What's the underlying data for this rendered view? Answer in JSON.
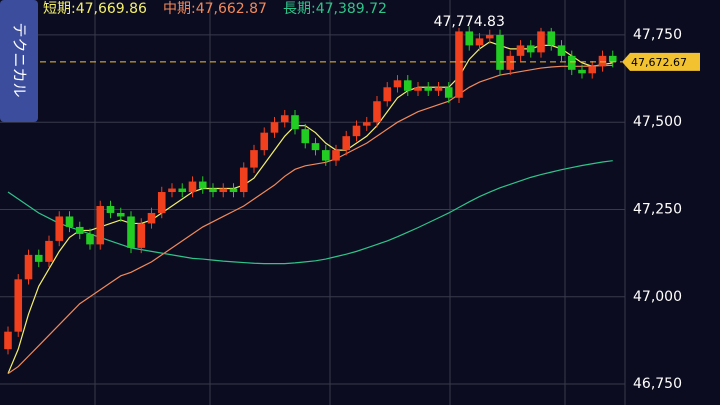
{
  "sidebar": {
    "label": "テクニカル"
  },
  "chart_data": {
    "type": "candlestick",
    "ylim": [
      46690,
      47850
    ],
    "yticks": [
      {
        "value": 46750,
        "label": "46,750"
      },
      {
        "value": 47000,
        "label": "47,000"
      },
      {
        "value": 47250,
        "label": "47,250"
      },
      {
        "value": 47500,
        "label": "47,500"
      },
      {
        "value": 47750,
        "label": "47,750"
      }
    ],
    "grid": true,
    "up_color": "#f0401e",
    "down_color": "#22cc22",
    "open": [
      46850,
      46900,
      47050,
      47120,
      47100,
      47160,
      47230,
      47200,
      47180,
      47150,
      47260,
      47240,
      47230,
      47140,
      47210,
      47240,
      47300,
      47310,
      47300,
      47330,
      47310,
      47300,
      47310,
      47300,
      47370,
      47420,
      47470,
      47500,
      47520,
      47480,
      47440,
      47420,
      47390,
      47420,
      47460,
      47490,
      47500,
      47560,
      47600,
      47620,
      47590,
      47600,
      47590,
      47600,
      47570,
      47760,
      47720,
      47740,
      47750,
      47650,
      47690,
      47720,
      47700,
      47760,
      47720,
      47690,
      47650,
      47640,
      47660,
      47690
    ],
    "high": [
      46915,
      47065,
      47135,
      47135,
      47175,
      47245,
      47245,
      47215,
      47195,
      47275,
      47275,
      47255,
      47245,
      47225,
      47255,
      47315,
      47325,
      47325,
      47345,
      47345,
      47325,
      47325,
      47325,
      47385,
      47435,
      47485,
      47515,
      47535,
      47535,
      47495,
      47455,
      47435,
      47435,
      47475,
      47505,
      47515,
      47575,
      47615,
      47635,
      47635,
      47615,
      47615,
      47615,
      47615,
      47770,
      47774.83,
      47755,
      47765,
      47765,
      47705,
      47735,
      47735,
      47770,
      47770,
      47735,
      47705,
      47665,
      47675,
      47705,
      47705
    ],
    "low": [
      46835,
      46885,
      47035,
      47085,
      47085,
      47145,
      47185,
      47165,
      47135,
      47135,
      47225,
      47215,
      47125,
      47125,
      47195,
      47225,
      47285,
      47285,
      47285,
      47295,
      47285,
      47285,
      47285,
      47285,
      47355,
      47405,
      47455,
      47485,
      47465,
      47425,
      47405,
      47375,
      47375,
      47405,
      47445,
      47475,
      47485,
      47545,
      47585,
      47575,
      47575,
      47575,
      47575,
      47555,
      47555,
      47705,
      47705,
      47725,
      47635,
      47635,
      47675,
      47685,
      47685,
      47705,
      47675,
      47635,
      47625,
      47625,
      47645,
      47657
    ],
    "close": [
      46900,
      47050,
      47120,
      47100,
      47160,
      47230,
      47200,
      47180,
      47150,
      47260,
      47240,
      47230,
      47140,
      47210,
      47240,
      47300,
      47310,
      47300,
      47330,
      47310,
      47300,
      47310,
      47300,
      47370,
      47420,
      47470,
      47500,
      47520,
      47480,
      47440,
      47420,
      47390,
      47420,
      47460,
      47490,
      47500,
      47560,
      47600,
      47620,
      47590,
      47600,
      47590,
      47600,
      47570,
      47760,
      47720,
      47740,
      47750,
      47650,
      47690,
      47720,
      47700,
      47760,
      47720,
      47690,
      47650,
      47640,
      47660,
      47690,
      47672.67
    ],
    "moving_averages": [
      {
        "name": "短期",
        "legend_label": "短期:47,669.86",
        "last_value": 47669.86,
        "color": "#f5f06a",
        "values": [
          46780,
          46850,
          46950,
          47030,
          47080,
          47130,
          47170,
          47190,
          47190,
          47200,
          47210,
          47220,
          47210,
          47210,
          47220,
          47240,
          47260,
          47280,
          47300,
          47310,
          47310,
          47310,
          47310,
          47320,
          47340,
          47380,
          47420,
          47460,
          47490,
          47490,
          47470,
          47440,
          47420,
          47420,
          47440,
          47460,
          47490,
          47530,
          47570,
          47590,
          47600,
          47600,
          47600,
          47600,
          47630,
          47680,
          47710,
          47730,
          47720,
          47710,
          47710,
          47710,
          47720,
          47720,
          47710,
          47690,
          47670,
          47660,
          47665,
          47669.86
        ]
      },
      {
        "name": "中期",
        "legend_label": "中期:47,662.87",
        "last_value": 47662.87,
        "color": "#f08a5a",
        "values": [
          46780,
          46800,
          46830,
          46860,
          46890,
          46920,
          46950,
          46980,
          47000,
          47020,
          47040,
          47060,
          47070,
          47085,
          47100,
          47120,
          47140,
          47160,
          47180,
          47200,
          47215,
          47230,
          47245,
          47260,
          47280,
          47300,
          47320,
          47345,
          47365,
          47375,
          47380,
          47385,
          47395,
          47410,
          47425,
          47440,
          47460,
          47480,
          47500,
          47515,
          47530,
          47540,
          47550,
          47560,
          47580,
          47600,
          47615,
          47625,
          47635,
          47640,
          47645,
          47650,
          47655,
          47658,
          47660,
          47660,
          47660,
          47661,
          47662,
          47662.87
        ]
      },
      {
        "name": "長期",
        "legend_label": "長期:47,389.72",
        "last_value": 47389.72,
        "color": "#2fc48a",
        "values": [
          47300,
          47280,
          47260,
          47240,
          47225,
          47210,
          47200,
          47190,
          47180,
          47170,
          47160,
          47150,
          47140,
          47135,
          47130,
          47125,
          47120,
          47115,
          47110,
          47108,
          47105,
          47102,
          47100,
          47098,
          47096,
          47095,
          47095,
          47095,
          47097,
          47100,
          47103,
          47108,
          47115,
          47122,
          47130,
          47140,
          47150,
          47160,
          47172,
          47185,
          47198,
          47212,
          47226,
          47240,
          47256,
          47272,
          47287,
          47300,
          47312,
          47322,
          47332,
          47342,
          47350,
          47357,
          47364,
          47370,
          47376,
          47381,
          47386,
          47389.72
        ]
      }
    ],
    "current_price": {
      "value": 47672.67,
      "label": "47,672.67",
      "color": "#f2c230"
    },
    "peak_annotation": {
      "value": 47774.83,
      "label": "47,774.83"
    }
  }
}
